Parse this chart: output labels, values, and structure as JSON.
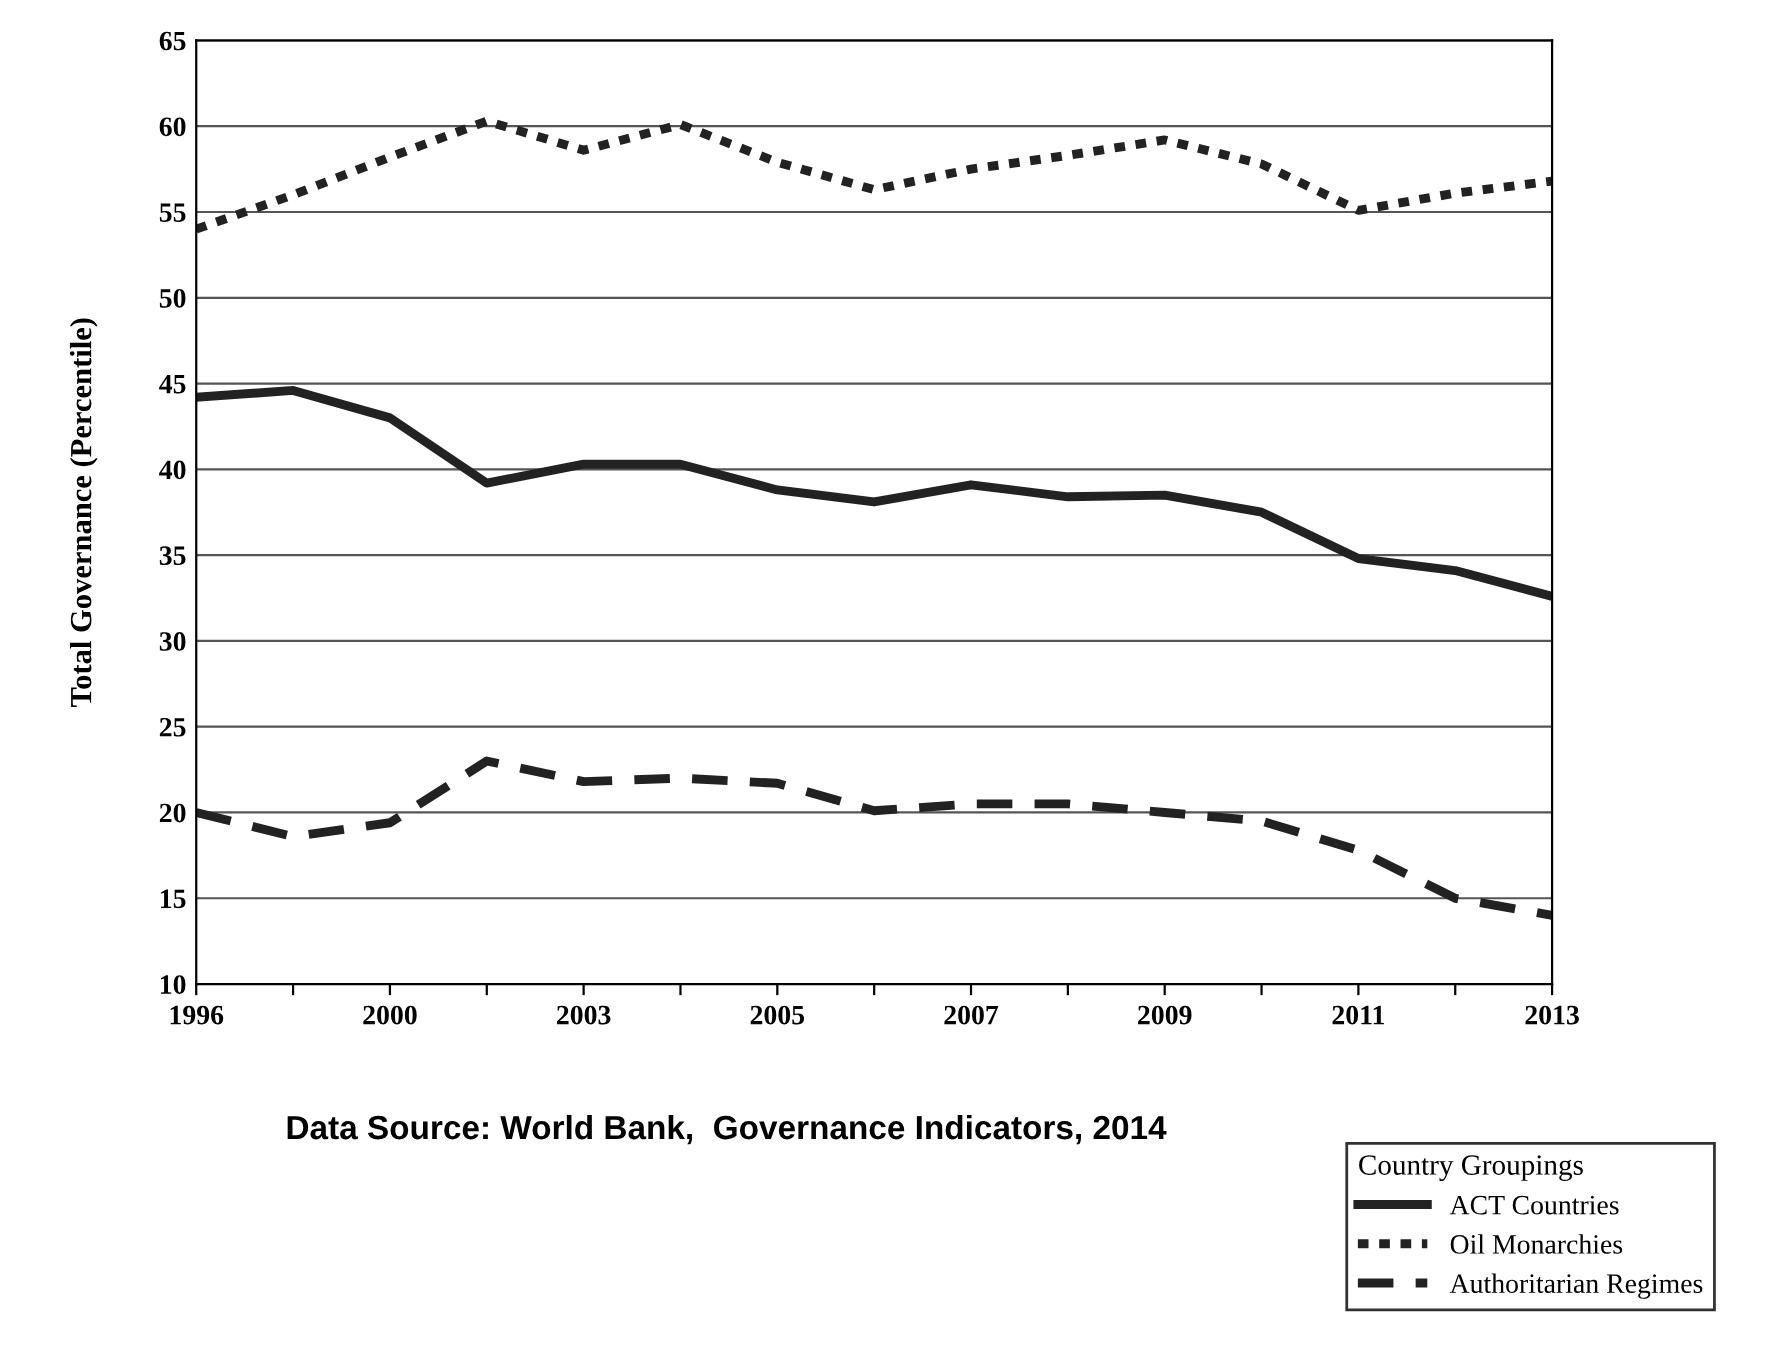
{
  "chart_data": {
    "type": "line",
    "ylabel": "Total Governance (Percentile)",
    "categories": [
      "1996",
      null,
      "2000",
      null,
      "2003",
      null,
      "2005",
      null,
      "2007",
      null,
      "2009",
      null,
      "2011",
      null,
      "2013"
    ],
    "series": [
      {
        "name": "ACT Countries",
        "color": "#222222",
        "line_style": "solid",
        "values": [
          44.2,
          44.6,
          43.0,
          39.2,
          40.3,
          40.3,
          38.8,
          38.1,
          39.1,
          38.4,
          38.5,
          37.5,
          34.8,
          34.1,
          32.6
        ]
      },
      {
        "name": "Oil Monarchies",
        "color": "#222222",
        "line_style": "dotted",
        "values": [
          54.0,
          56.0,
          58.2,
          60.3,
          58.6,
          60.1,
          57.9,
          56.3,
          57.5,
          58.3,
          59.2,
          57.8,
          55.1,
          56.1,
          56.8
        ]
      },
      {
        "name": "Authoritarian Regimes",
        "color": "#222222",
        "line_style": "dashed",
        "values": [
          20.0,
          18.6,
          19.4,
          23.0,
          21.8,
          22.0,
          21.7,
          20.1,
          20.5,
          20.5,
          20.0,
          19.5,
          17.8,
          15.0,
          14.0
        ]
      }
    ],
    "ylim": [
      10,
      65
    ],
    "yticks": [
      10,
      15,
      20,
      25,
      30,
      35,
      40,
      45,
      50,
      55,
      60,
      65
    ],
    "grid": "y",
    "legend": "bottom right",
    "legend_title": "Country Groupings",
    "marker": "none",
    "annotations": [
      "Data Source: World Bank,  Governance Indicators, 2014"
    ]
  }
}
